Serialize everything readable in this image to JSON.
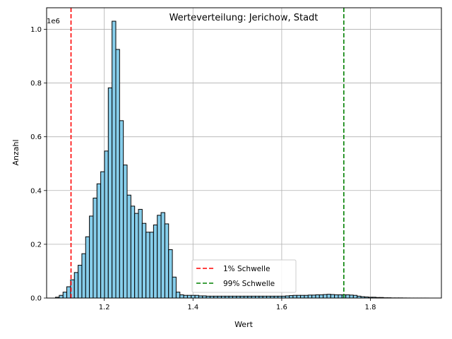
{
  "chart_data": {
    "type": "bar",
    "title": "Werteverteilung: Jerichow, Stadt",
    "xlabel": "Wert",
    "ylabel": "Anzahl",
    "y_offset_label": "1e6",
    "xlim": [
      1.07,
      1.96
    ],
    "ylim": [
      0,
      1080000
    ],
    "xticks": [
      1.2,
      1.4,
      1.6,
      1.8
    ],
    "xtick_labels": [
      "1.2",
      "1.4",
      "1.6",
      "1.8"
    ],
    "yticks": [
      0,
      200000,
      400000,
      600000,
      800000,
      1000000
    ],
    "ytick_labels": [
      "0.0",
      "0.2",
      "0.4",
      "0.6",
      "0.8",
      "1.0"
    ],
    "grid": true,
    "bar_color": "#87ceeb",
    "bar_edge_color": "#000000",
    "histogram": {
      "bin_start": 1.09,
      "bin_width": 0.0085,
      "counts": [
        3000,
        10000,
        22000,
        42000,
        68000,
        95000,
        122000,
        165000,
        228000,
        305000,
        372000,
        425000,
        470000,
        547000,
        782000,
        1030000,
        925000,
        660000,
        495000,
        383000,
        342000,
        315000,
        330000,
        278000,
        245000,
        245000,
        272000,
        308000,
        318000,
        276000,
        180000,
        78000,
        22000,
        12000,
        10000,
        10000,
        10000,
        10000,
        8000,
        8000,
        7000,
        7000,
        7000,
        7000,
        7000,
        7000,
        7000,
        7000,
        7000,
        7000,
        7000,
        7000,
        7000,
        7000,
        7000,
        7000,
        7000,
        7000,
        7000,
        7000,
        7000,
        8000,
        9000,
        10000,
        10000,
        10000,
        10000,
        11000,
        11000,
        12000,
        12000,
        13000,
        14000,
        13000,
        12000,
        12000,
        12000,
        12000,
        11000,
        10000,
        7000,
        5000,
        4000,
        3000,
        3000,
        2000,
        2000,
        1000,
        1000,
        500,
        500,
        500,
        300,
        200,
        100,
        100,
        100,
        100,
        100
      ]
    },
    "thresholds": [
      {
        "name": "1% Schwelle",
        "value": 1.125,
        "color": "#ff0000"
      },
      {
        "name": "99% Schwelle",
        "value": 1.74,
        "color": "#008000"
      }
    ],
    "legend_position": "lower center"
  }
}
